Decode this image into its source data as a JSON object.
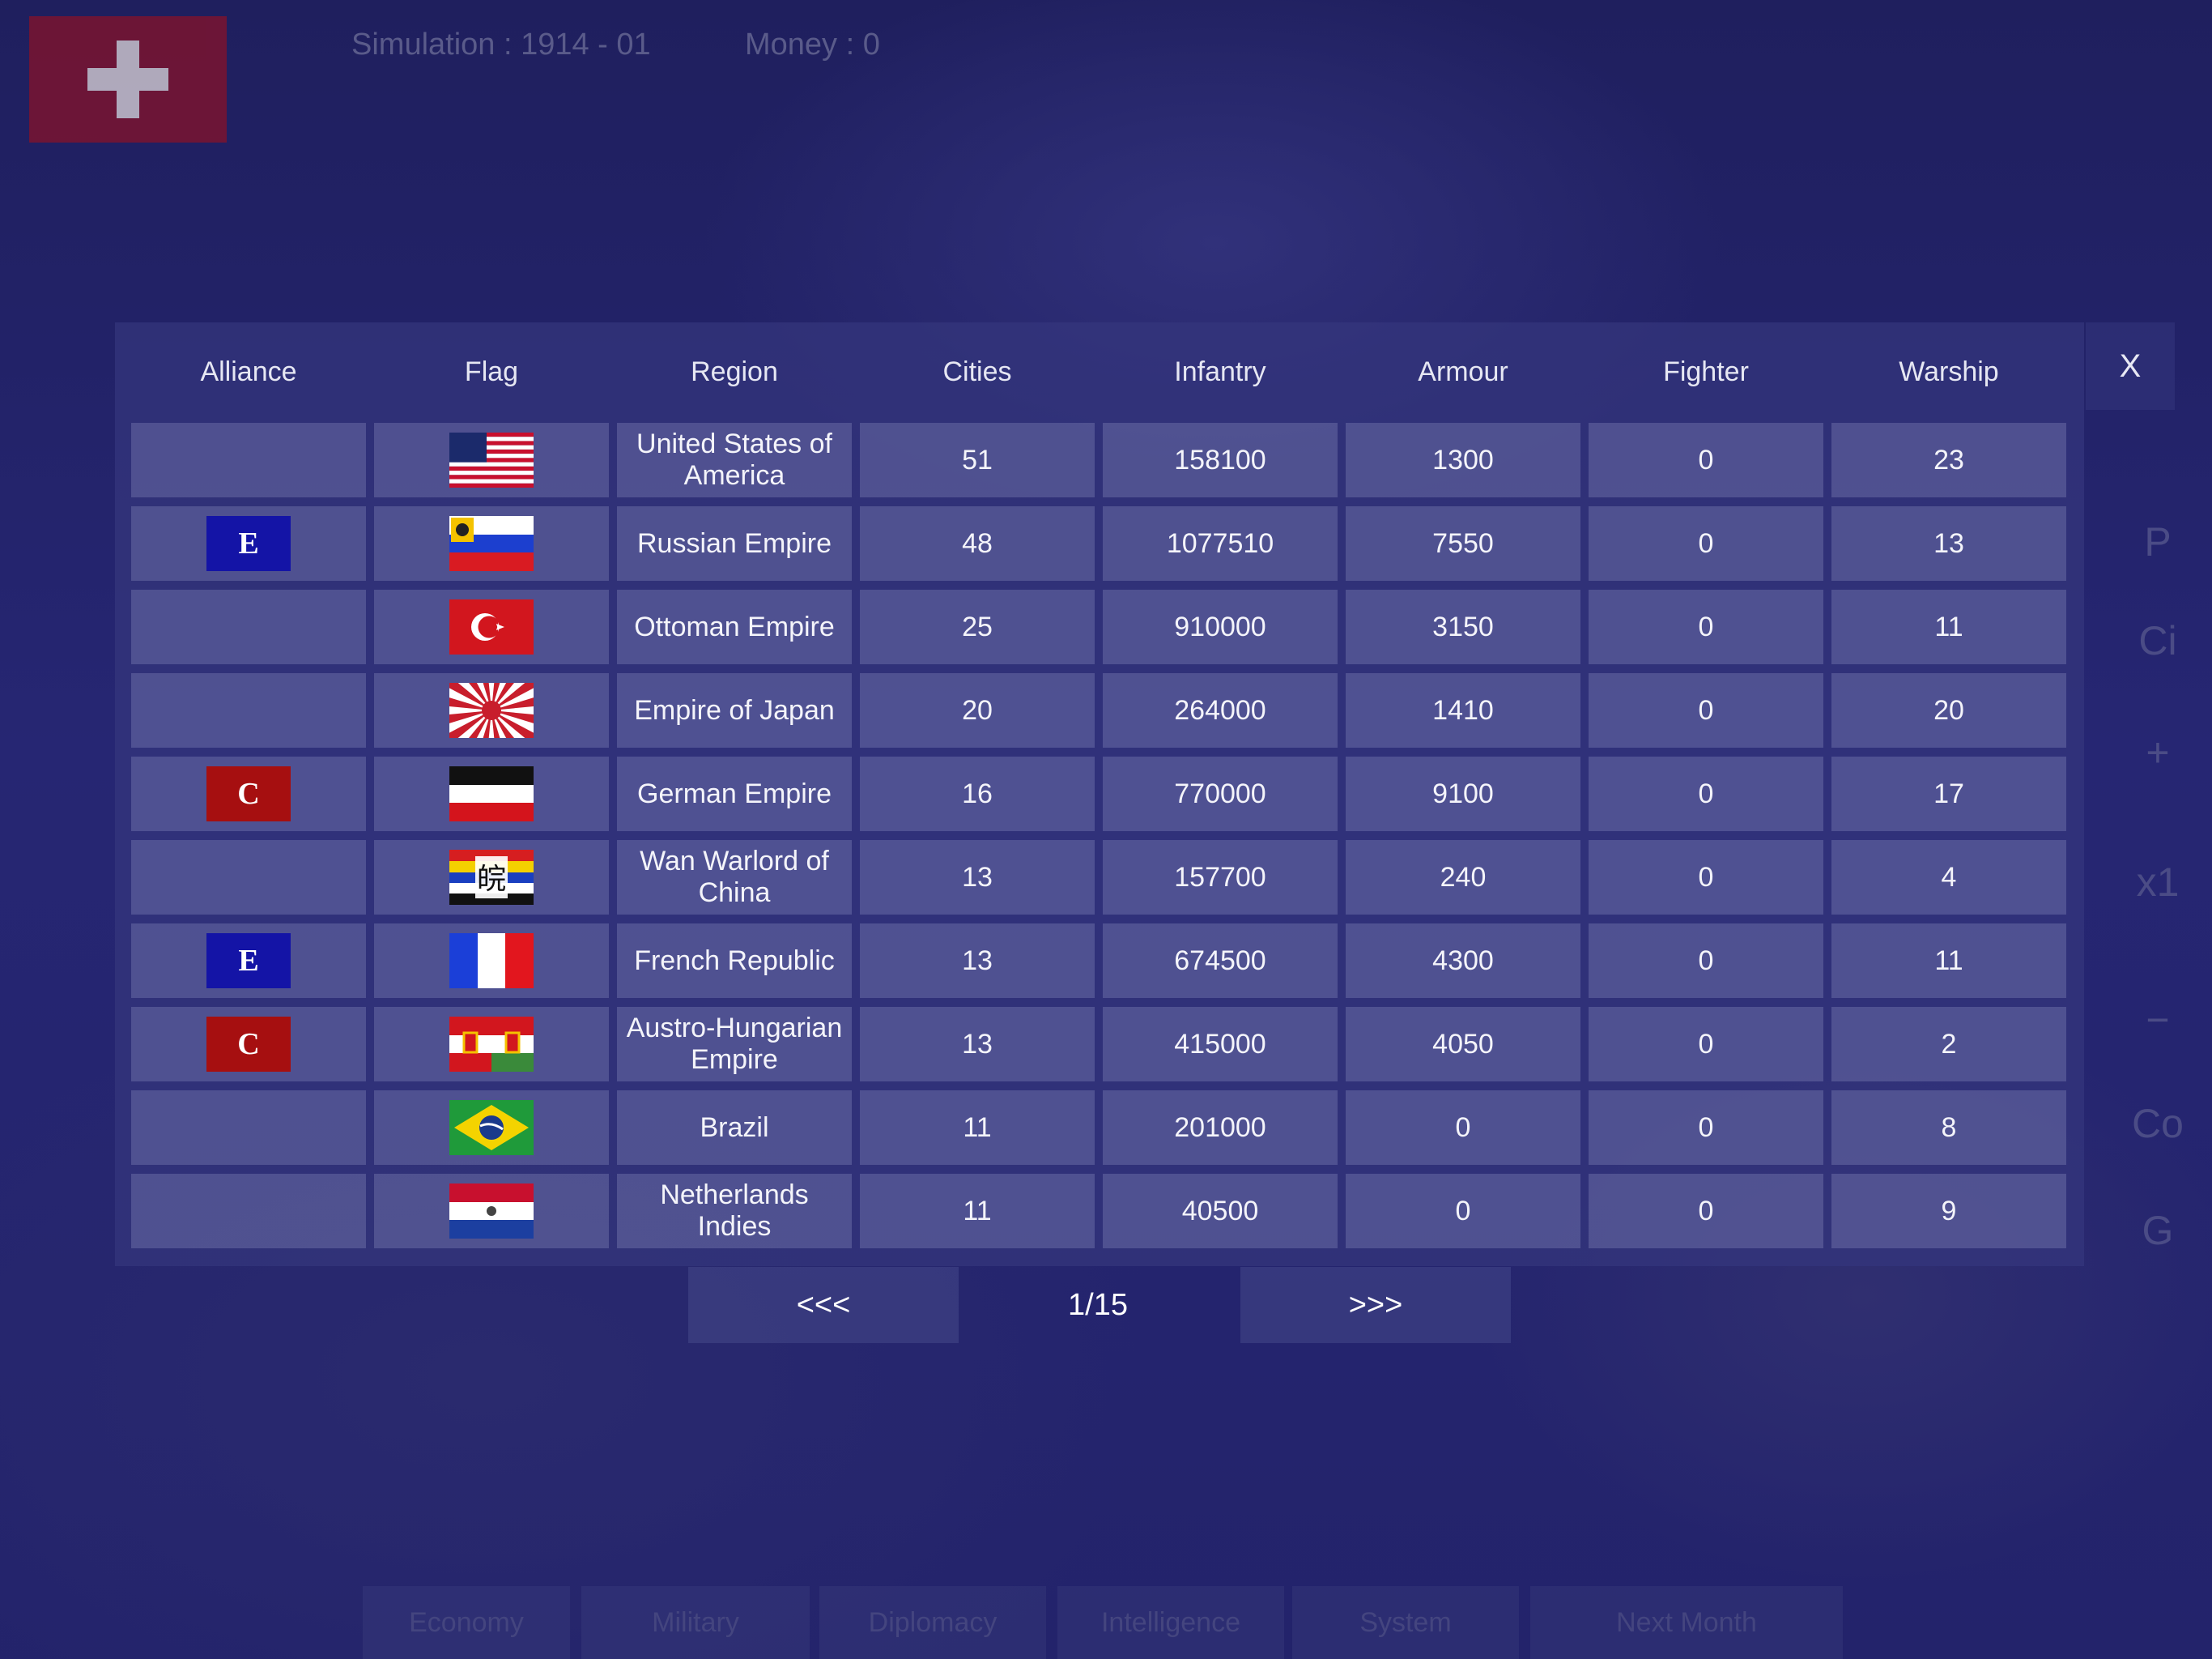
{
  "top": {
    "simulation": "Simulation : 1914 - 01",
    "money": "Money : 0"
  },
  "table": {
    "close_label": "X",
    "headers": {
      "alliance": "Alliance",
      "flag": "Flag",
      "region": "Region",
      "cities": "Cities",
      "infantry": "Infantry",
      "armour": "Armour",
      "fighter": "Fighter",
      "warship": "Warship"
    },
    "rows": [
      {
        "alliance": "",
        "flag": "usa-flag-icon",
        "region": "United States of America",
        "cities": "51",
        "infantry": "158100",
        "armour": "1300",
        "fighter": "0",
        "warship": "23"
      },
      {
        "alliance": "E",
        "flag": "russia-flag-icon",
        "region": "Russian Empire",
        "cities": "48",
        "infantry": "1077510",
        "armour": "7550",
        "fighter": "0",
        "warship": "13"
      },
      {
        "alliance": "",
        "flag": "ottoman-flag-icon",
        "region": "Ottoman Empire",
        "cities": "25",
        "infantry": "910000",
        "armour": "3150",
        "fighter": "0",
        "warship": "11"
      },
      {
        "alliance": "",
        "flag": "japan-flag-icon",
        "region": "Empire of Japan",
        "cities": "20",
        "infantry": "264000",
        "armour": "1410",
        "fighter": "0",
        "warship": "20"
      },
      {
        "alliance": "C",
        "flag": "german-empire-flag-icon",
        "region": "German Empire",
        "cities": "16",
        "infantry": "770000",
        "armour": "9100",
        "fighter": "0",
        "warship": "17"
      },
      {
        "alliance": "",
        "flag": "wan-warlord-flag-icon",
        "region": "Wan Warlord of China",
        "cities": "13",
        "infantry": "157700",
        "armour": "240",
        "fighter": "0",
        "warship": "4"
      },
      {
        "alliance": "E",
        "flag": "france-flag-icon",
        "region": "French Republic",
        "cities": "13",
        "infantry": "674500",
        "armour": "4300",
        "fighter": "0",
        "warship": "11"
      },
      {
        "alliance": "C",
        "flag": "austria-hungary-flag-icon",
        "region": "Austro-Hungarian Empire",
        "cities": "13",
        "infantry": "415000",
        "armour": "4050",
        "fighter": "0",
        "warship": "2"
      },
      {
        "alliance": "",
        "flag": "brazil-flag-icon",
        "region": "Brazil",
        "cities": "11",
        "infantry": "201000",
        "armour": "0",
        "fighter": "0",
        "warship": "8"
      },
      {
        "alliance": "",
        "flag": "netherlands-indies-flag-icon",
        "region": "Netherlands Indies",
        "cities": "11",
        "infantry": "40500",
        "armour": "0",
        "fighter": "0",
        "warship": "9"
      }
    ]
  },
  "pager": {
    "prev": "<<<",
    "page": "1/15",
    "next": ">>>"
  },
  "side_buttons": [
    "P",
    "Ci",
    "+",
    "x1",
    "−",
    "Co",
    "G"
  ],
  "bottom_tabs": [
    "Economy",
    "Military",
    "Diplomacy",
    "Intelligence",
    "System",
    "Next Month"
  ],
  "colors": {
    "alliance_E": "#1414a6",
    "alliance_C": "#a60f10",
    "panel": "#34367d",
    "player_flag": "#7a1430"
  }
}
